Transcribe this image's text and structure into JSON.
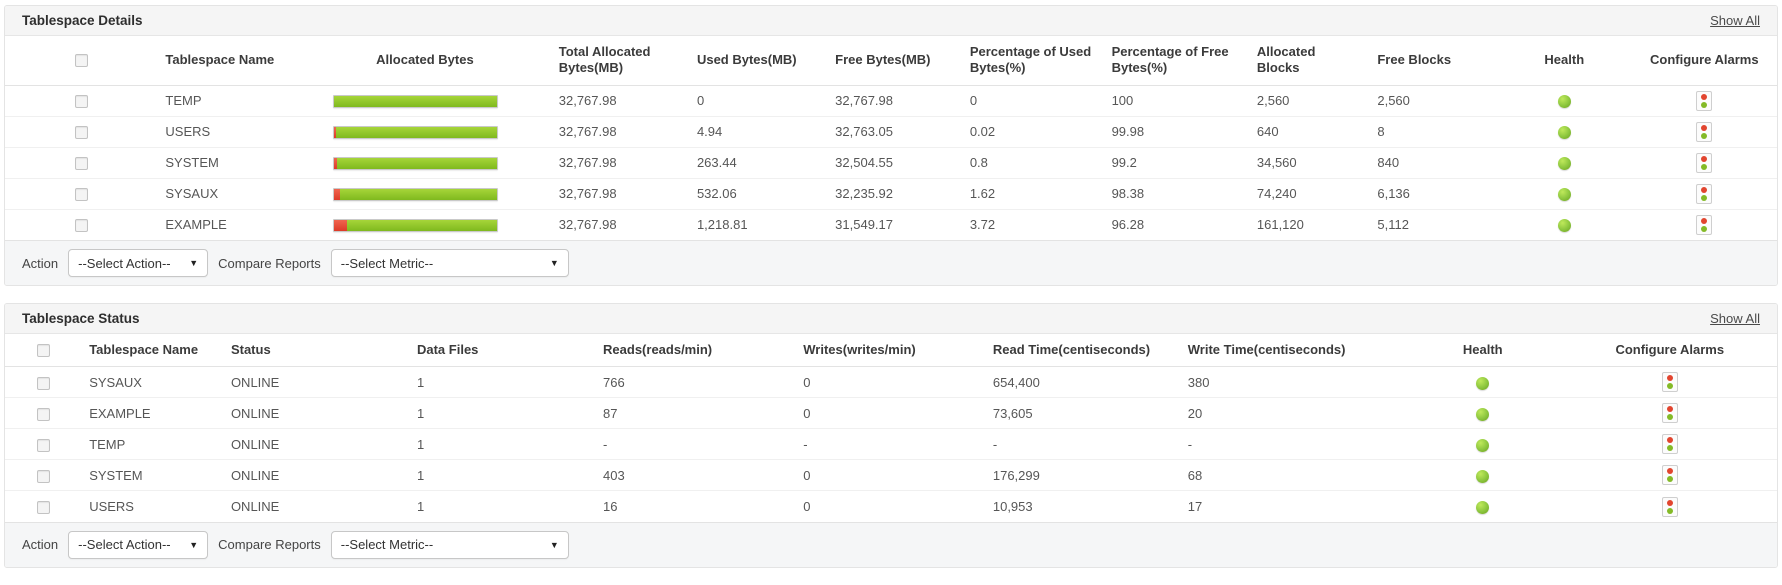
{
  "colors": {
    "bar_green": "#8dc63f",
    "bar_red": "#e2452f",
    "health_green": "#8cc63e"
  },
  "sections": [
    {
      "title": "Tablespace Details",
      "show_all_label": "Show All",
      "columns": [
        "Tablespace Name",
        "Allocated Bytes",
        "Total Allocated Bytes(MB)",
        "Used Bytes(MB)",
        "Free Bytes(MB)",
        "Percentage of Used Bytes(%)",
        "Percentage of Free Bytes(%)",
        "Allocated Blocks",
        "Free Blocks",
        "Health",
        "Configure Alarms"
      ],
      "cell_fields": [
        {
          "type": "checkbox"
        },
        {
          "type": "text",
          "key": "name"
        },
        {
          "type": "bar"
        },
        {
          "type": "text",
          "key": "total_allocated_mb"
        },
        {
          "type": "text",
          "key": "used_mb"
        },
        {
          "type": "text",
          "key": "free_mb"
        },
        {
          "type": "text",
          "key": "used_pct"
        },
        {
          "type": "text",
          "key": "free_pct"
        },
        {
          "type": "text",
          "key": "allocated_blocks"
        },
        {
          "type": "text",
          "key": "free_blocks"
        },
        {
          "type": "health"
        },
        {
          "type": "alarm"
        }
      ],
      "rows": [
        {
          "name": "TEMP",
          "total_allocated_mb": "32,767.98",
          "used_mb": "0",
          "free_mb": "32,767.98",
          "used_pct": "0",
          "free_pct": "100",
          "allocated_blocks": "2,560",
          "free_blocks": "2,560",
          "used_pct_num": 0,
          "health": "clear"
        },
        {
          "name": "USERS",
          "total_allocated_mb": "32,767.98",
          "used_mb": "4.94",
          "free_mb": "32,763.05",
          "used_pct": "0.02",
          "free_pct": "99.98",
          "allocated_blocks": "640",
          "free_blocks": "8",
          "used_pct_num": 0.02,
          "health": "clear"
        },
        {
          "name": "SYSTEM",
          "total_allocated_mb": "32,767.98",
          "used_mb": "263.44",
          "free_mb": "32,504.55",
          "used_pct": "0.8",
          "free_pct": "99.2",
          "allocated_blocks": "34,560",
          "free_blocks": "840",
          "used_pct_num": 0.8,
          "health": "clear"
        },
        {
          "name": "SYSAUX",
          "total_allocated_mb": "32,767.98",
          "used_mb": "532.06",
          "free_mb": "32,235.92",
          "used_pct": "1.62",
          "free_pct": "98.38",
          "allocated_blocks": "74,240",
          "free_blocks": "6,136",
          "used_pct_num": 1.62,
          "health": "clear"
        },
        {
          "name": "EXAMPLE",
          "total_allocated_mb": "32,767.98",
          "used_mb": "1,218.81",
          "free_mb": "31,549.17",
          "used_pct": "3.72",
          "free_pct": "96.28",
          "allocated_blocks": "161,120",
          "free_blocks": "5,112",
          "used_pct_num": 3.72,
          "health": "clear"
        }
      ],
      "action": {
        "label": "Action",
        "selected": "--Select Action--"
      },
      "compare": {
        "label": "Compare Reports",
        "selected": "--Select Metric--"
      }
    },
    {
      "title": "Tablespace Status",
      "show_all_label": "Show All",
      "columns": [
        "Tablespace Name",
        "Status",
        "Data Files",
        "Reads(reads/min)",
        "Writes(writes/min)",
        "Read Time(centiseconds)",
        "Write Time(centiseconds)",
        "Health",
        "Configure Alarms"
      ],
      "cell_fields": [
        {
          "type": "checkbox"
        },
        {
          "type": "text",
          "key": "name"
        },
        {
          "type": "text",
          "key": "status"
        },
        {
          "type": "text",
          "key": "data_files"
        },
        {
          "type": "text",
          "key": "reads"
        },
        {
          "type": "text",
          "key": "writes"
        },
        {
          "type": "text",
          "key": "read_time"
        },
        {
          "type": "text",
          "key": "write_time"
        },
        {
          "type": "health"
        },
        {
          "type": "alarm"
        }
      ],
      "rows": [
        {
          "name": "SYSAUX",
          "status": "ONLINE",
          "data_files": "1",
          "reads": "766",
          "writes": "0",
          "read_time": "654,400",
          "write_time": "380",
          "health": "clear"
        },
        {
          "name": "EXAMPLE",
          "status": "ONLINE",
          "data_files": "1",
          "reads": "87",
          "writes": "0",
          "read_time": "73,605",
          "write_time": "20",
          "health": "clear"
        },
        {
          "name": "TEMP",
          "status": "ONLINE",
          "data_files": "1",
          "reads": "-",
          "writes": "-",
          "read_time": "-",
          "write_time": "-",
          "health": "clear"
        },
        {
          "name": "SYSTEM",
          "status": "ONLINE",
          "data_files": "1",
          "reads": "403",
          "writes": "0",
          "read_time": "176,299",
          "write_time": "68",
          "health": "clear"
        },
        {
          "name": "USERS",
          "status": "ONLINE",
          "data_files": "1",
          "reads": "16",
          "writes": "0",
          "read_time": "10,953",
          "write_time": "17",
          "health": "clear"
        }
      ],
      "action": {
        "label": "Action",
        "selected": "--Select Action--"
      },
      "compare": {
        "label": "Compare Reports",
        "selected": "--Select Metric--"
      }
    }
  ]
}
